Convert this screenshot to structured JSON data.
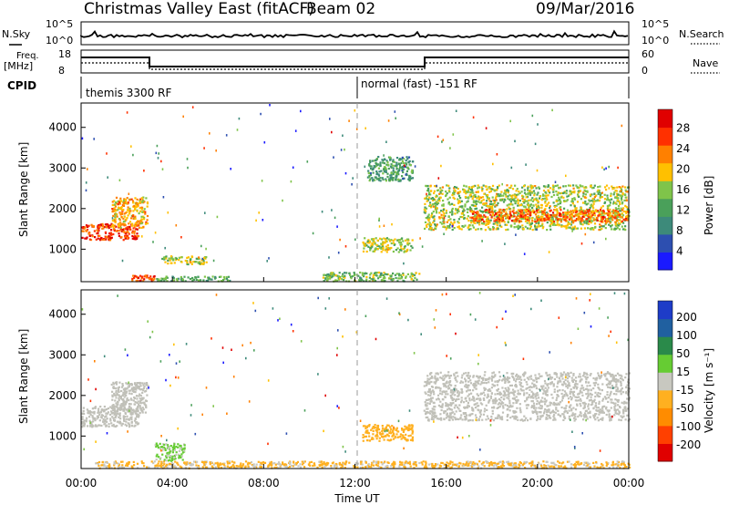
{
  "header": {
    "station": "Christmas Valley East (fitACF)",
    "beam": "Beam 02",
    "date": "09/Mar/2016"
  },
  "top_panel": {
    "left_label": "N.Sky",
    "left_ticks": [
      "10^5",
      "10^0"
    ],
    "right_label": "N.Search",
    "right_ticks": [
      "10^5",
      "10^0"
    ]
  },
  "freq_panel": {
    "left_label_lines": [
      "Freq.",
      "[MHz]"
    ],
    "left_ticks": [
      "18",
      "8"
    ],
    "right_label": "Nave",
    "right_ticks": [
      "60",
      "0"
    ]
  },
  "cpid": {
    "label": "CPID",
    "mode_1": "themis 3300 RF",
    "mode_2": "normal (fast) -151 RF"
  },
  "colors": {
    "power_scale": [
      "#1a1aff",
      "#2d4fb0",
      "#3d8a7a",
      "#4aa05a",
      "#7fc44a",
      "#ffc000",
      "#ff8000",
      "#ff3000",
      "#e00000"
    ],
    "velocity_scale": [
      "#1e3cc8",
      "#2060a0",
      "#2a8a4a",
      "#66cc33",
      "#c8c8c0",
      "#ffb020",
      "#ff8c00",
      "#ff4000",
      "#e00000"
    ],
    "ground_scatter": "#c0c0b8"
  },
  "chart_data": [
    {
      "type": "heatmap",
      "name": "power",
      "xlabel": "Time UT",
      "ylabel": "Slant Range [km]",
      "x_ticks": [
        "00:00",
        "04:00",
        "08:00",
        "12:00",
        "16:00",
        "20:00",
        "00:00"
      ],
      "y_ticks": [
        "1000",
        "2000",
        "3000",
        "4000"
      ],
      "ylim": [
        200,
        4600
      ],
      "xlim_hours": [
        0,
        24
      ],
      "colorbar": {
        "label": "Power [dB]",
        "ticks": [
          "28",
          "24",
          "20",
          "16",
          "12",
          "8",
          "4"
        ],
        "range": [
          0,
          30
        ]
      },
      "features": [
        {
          "t0": 0.0,
          "t1": 2.5,
          "r0": 1250,
          "r1": 1650,
          "level": 27
        },
        {
          "t0": 1.3,
          "t1": 2.9,
          "r0": 1550,
          "r1": 2300,
          "level": 20
        },
        {
          "t0": 2.2,
          "t1": 3.2,
          "r0": 230,
          "r1": 380,
          "level": 26
        },
        {
          "t0": 3.2,
          "t1": 6.5,
          "r0": 230,
          "r1": 350,
          "level": 12
        },
        {
          "t0": 3.5,
          "t1": 5.5,
          "r0": 650,
          "r1": 850,
          "level": 16
        },
        {
          "t0": 10.5,
          "t1": 14.8,
          "r0": 230,
          "r1": 450,
          "level": 14
        },
        {
          "t0": 12.3,
          "t1": 14.5,
          "r0": 950,
          "r1": 1300,
          "level": 16
        },
        {
          "t0": 12.5,
          "t1": 14.5,
          "r0": 2700,
          "r1": 3300,
          "level": 10
        },
        {
          "t0": 15.0,
          "t1": 24.0,
          "r0": 1500,
          "r1": 2600,
          "level": 16
        },
        {
          "t0": 17.0,
          "t1": 24.0,
          "r0": 1700,
          "r1": 2000,
          "level": 24
        }
      ]
    },
    {
      "type": "heatmap",
      "name": "velocity",
      "xlabel": "Time UT",
      "ylabel": "Slant Range [km]",
      "x_ticks": [
        "00:00",
        "04:00",
        "08:00",
        "12:00",
        "16:00",
        "20:00",
        "00:00"
      ],
      "y_ticks": [
        "1000",
        "2000",
        "3000",
        "4000"
      ],
      "ylim": [
        200,
        4600
      ],
      "xlim_hours": [
        0,
        24
      ],
      "colorbar": {
        "label": "Velocity [m s⁻¹]",
        "ticks": [
          "200",
          "100",
          "50",
          "15",
          "-15",
          "-50",
          "-100",
          "-200"
        ],
        "range": [
          -250,
          250
        ]
      },
      "features": [
        {
          "t0": 0.0,
          "t1": 2.5,
          "r0": 1250,
          "r1": 1750,
          "level": 0
        },
        {
          "t0": 1.3,
          "t1": 2.9,
          "r0": 1550,
          "r1": 2350,
          "level": 0
        },
        {
          "t0": 3.2,
          "t1": 4.5,
          "r0": 400,
          "r1": 850,
          "level": 40
        },
        {
          "t0": 12.3,
          "t1": 14.5,
          "r0": 900,
          "r1": 1300,
          "level": -60
        },
        {
          "t0": 15.0,
          "t1": 24.0,
          "r0": 1400,
          "r1": 2600,
          "level": 0
        },
        {
          "t0": 0.5,
          "t1": 24.0,
          "r0": 230,
          "r1": 400,
          "level": -40
        }
      ]
    }
  ]
}
